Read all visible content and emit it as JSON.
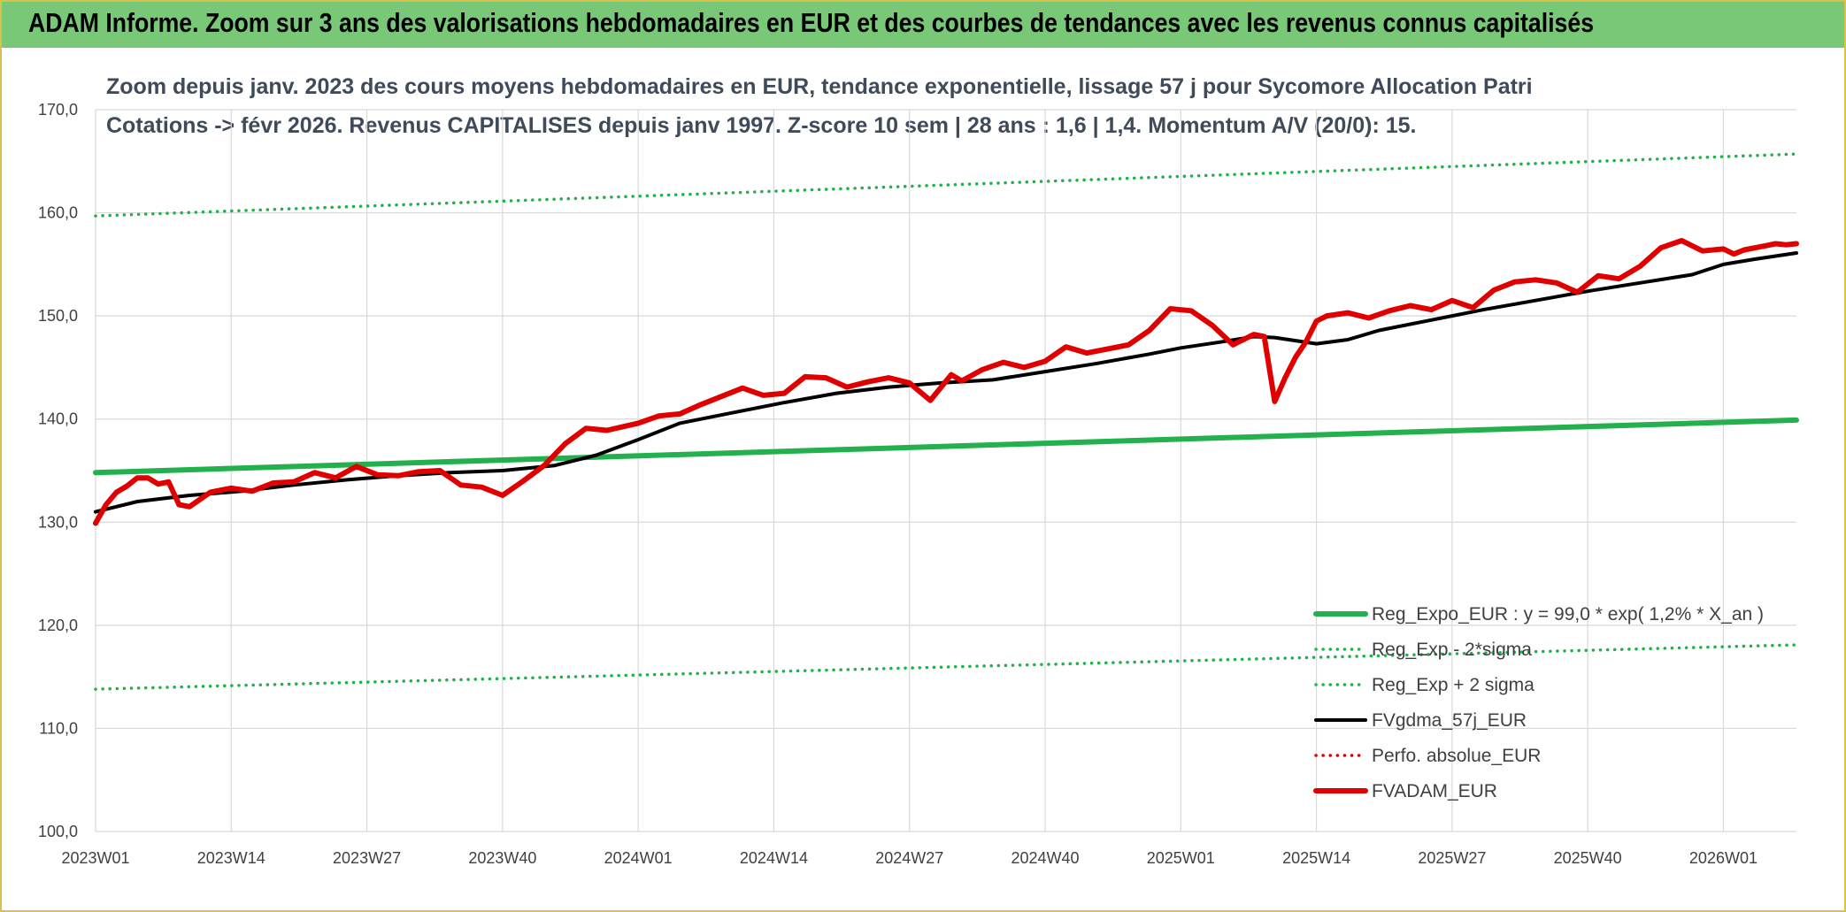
{
  "header": {
    "title": "ADAM Informe. Zoom sur 3 ans des valorisations hebdomadaires en EUR et des courbes de tendances avec les revenus connus capitalisés"
  },
  "chart_data": {
    "type": "line",
    "title_line1": "Zoom depuis janv. 2023 des cours moyens hebdomadaires en EUR, tendance exponentielle, lissage 57 j pour Sycomore Allocation Patri",
    "title_line2": "Cotations -> févr 2026. Revenus CAPITALISES depuis janv 1997. Z-score 10 sem | 28 ans : 1,6 | 1,4. Momentum A/V (20/0): 15.",
    "x_range": [
      "2023W01",
      "2026W08"
    ],
    "x_tick_labels": [
      "2023W01",
      "2023W14",
      "2023W27",
      "2023W40",
      "2024W01",
      "2024W14",
      "2024W27",
      "2024W40",
      "2025W01",
      "2025W14",
      "2025W27",
      "2025W40",
      "2026W01"
    ],
    "ylim": [
      100,
      170
    ],
    "y_tick_labels": [
      "100,0",
      "110,0",
      "120,0",
      "130,0",
      "140,0",
      "150,0",
      "160,0",
      "170,0"
    ],
    "grid": true,
    "legend_position": "bottom-right",
    "series": [
      {
        "name": "Reg_Expo_EUR : y = 99,0 * exp( 1,2% *  X_an )",
        "color": "#22b14c",
        "style": "solid-thick",
        "x": [
          "2023W01",
          "2026W08"
        ],
        "values": [
          134.8,
          139.9
        ]
      },
      {
        "name": "Reg_Exp - 2*sigma",
        "color": "#22b14c",
        "style": "dotted",
        "x": [
          "2023W01",
          "2026W08"
        ],
        "values": [
          113.8,
          118.1
        ]
      },
      {
        "name": "Reg_Exp + 2 sigma",
        "color": "#22b14c",
        "style": "dotted",
        "x": [
          "2023W01",
          "2026W08"
        ],
        "values": [
          159.7,
          165.7
        ]
      },
      {
        "name": "FVgdma_57j_EUR",
        "color": "#000000",
        "style": "solid",
        "x": [
          "2023W01",
          "2023W05",
          "2023W10",
          "2023W15",
          "2023W20",
          "2023W25",
          "2023W30",
          "2023W35",
          "2023W40",
          "2023W45",
          "2023W49",
          "2024W01",
          "2024W05",
          "2024W10",
          "2024W15",
          "2024W20",
          "2024W25",
          "2024W30",
          "2024W35",
          "2024W40",
          "2024W45",
          "2024W50",
          "2025W01",
          "2025W05",
          "2025W08",
          "2025W10",
          "2025W14",
          "2025W17",
          "2025W20",
          "2025W25",
          "2025W30",
          "2025W35",
          "2025W40",
          "2025W45",
          "2025W50",
          "2026W01",
          "2026W04",
          "2026W08"
        ],
        "values": [
          131.0,
          132.0,
          132.6,
          133.0,
          133.6,
          134.1,
          134.5,
          134.8,
          135.0,
          135.5,
          136.5,
          138.0,
          139.6,
          140.6,
          141.6,
          142.5,
          143.1,
          143.5,
          143.8,
          144.6,
          145.4,
          146.3,
          146.9,
          147.5,
          148.0,
          147.9,
          147.3,
          147.7,
          148.6,
          149.6,
          150.6,
          151.5,
          152.4,
          153.2,
          154.0,
          155.0,
          155.5,
          156.1
        ]
      },
      {
        "name": "Perfo. absolue_EUR",
        "color": "#e00000",
        "style": "dotted",
        "x": [],
        "values": []
      },
      {
        "name": "FVADAM_EUR",
        "color": "#e00000",
        "style": "solid-thick",
        "x": [
          "2023W01",
          "2023W02",
          "2023W03",
          "2023W04",
          "2023W05",
          "2023W06",
          "2023W07",
          "2023W08",
          "2023W09",
          "2023W10",
          "2023W11",
          "2023W12",
          "2023W14",
          "2023W16",
          "2023W18",
          "2023W20",
          "2023W22",
          "2023W24",
          "2023W26",
          "2023W28",
          "2023W30",
          "2023W32",
          "2023W34",
          "2023W36",
          "2023W38",
          "2023W40",
          "2023W42",
          "2023W44",
          "2023W46",
          "2023W48",
          "2023W50",
          "2024W01",
          "2024W03",
          "2024W05",
          "2024W07",
          "2024W09",
          "2024W11",
          "2024W13",
          "2024W15",
          "2024W17",
          "2024W19",
          "2024W21",
          "2024W23",
          "2024W25",
          "2024W27",
          "2024W29",
          "2024W31",
          "2024W32",
          "2024W34",
          "2024W36",
          "2024W38",
          "2024W40",
          "2024W42",
          "2024W44",
          "2024W46",
          "2024W48",
          "2024W50",
          "2024W52",
          "2025W02",
          "2025W04",
          "2025W06",
          "2025W08",
          "2025W09",
          "2025W10",
          "2025W11",
          "2025W12",
          "2025W13",
          "2025W14",
          "2025W15",
          "2025W17",
          "2025W19",
          "2025W21",
          "2025W23",
          "2025W25",
          "2025W27",
          "2025W29",
          "2025W31",
          "2025W33",
          "2025W35",
          "2025W37",
          "2025W39",
          "2025W41",
          "2025W43",
          "2025W45",
          "2025W47",
          "2025W49",
          "2025W51",
          "2026W01",
          "2026W02",
          "2026W03",
          "2026W04",
          "2026W05",
          "2026W06",
          "2026W07",
          "2026W08"
        ],
        "values": [
          129.9,
          131.7,
          132.9,
          133.5,
          134.3,
          134.3,
          133.7,
          133.9,
          131.7,
          131.5,
          132.2,
          132.9,
          133.3,
          133.0,
          133.8,
          133.9,
          134.8,
          134.3,
          135.4,
          134.6,
          134.5,
          134.9,
          135.0,
          133.6,
          133.4,
          132.6,
          134.0,
          135.5,
          137.6,
          139.1,
          138.9,
          139.6,
          140.3,
          140.5,
          141.4,
          142.2,
          143.0,
          142.3,
          142.5,
          144.1,
          144.0,
          143.1,
          143.6,
          144.0,
          143.5,
          141.8,
          144.3,
          143.7,
          144.8,
          145.5,
          145.0,
          145.6,
          147.0,
          146.4,
          146.8,
          147.2,
          148.6,
          150.7,
          150.5,
          149.1,
          147.2,
          148.2,
          148.0,
          141.7,
          144.0,
          146.0,
          147.5,
          149.5,
          150.0,
          150.3,
          149.8,
          150.5,
          151.0,
          150.6,
          151.5,
          150.8,
          152.5,
          153.3,
          153.5,
          153.2,
          152.3,
          153.9,
          153.6,
          154.8,
          156.6,
          157.3,
          156.3,
          156.5,
          156.0,
          156.4,
          156.6,
          156.8,
          157.0,
          156.9,
          157.0
        ]
      }
    ]
  }
}
